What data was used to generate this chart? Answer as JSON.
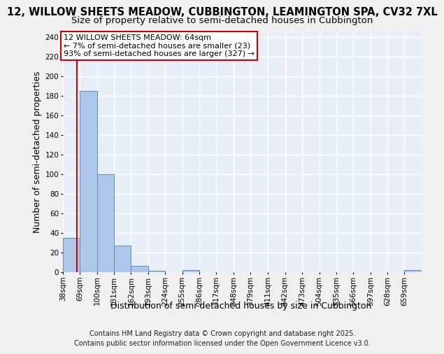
{
  "title_line1": "12, WILLOW SHEETS MEADOW, CUBBINGTON, LEAMINGTON SPA, CV32 7XL",
  "title_line2": "Size of property relative to semi-detached houses in Cubbington",
  "xlabel": "Distribution of semi-detached houses by size in Cubbington",
  "ylabel": "Number of semi-detached properties",
  "footer_line1": "Contains HM Land Registry data © Crown copyright and database right 2025.",
  "footer_line2": "Contains public sector information licensed under the Open Government Licence v3.0.",
  "annotation_line1": "12 WILLOW SHEETS MEADOW: 64sqm",
  "annotation_line2": "← 7% of semi-detached houses are smaller (23)",
  "annotation_line3": "93% of semi-detached houses are larger (327) →",
  "property_size_sqm": 64,
  "bar_left_edges": [
    38,
    69,
    100,
    131,
    162,
    193,
    224,
    255,
    286,
    317,
    348,
    379,
    411,
    442,
    473,
    504,
    535,
    566,
    597,
    628,
    659
  ],
  "bar_heights": [
    35,
    185,
    100,
    27,
    6,
    1,
    0,
    2,
    0,
    0,
    0,
    0,
    0,
    0,
    0,
    0,
    0,
    0,
    0,
    0,
    2
  ],
  "bin_width": 31,
  "bar_color": "#aec6e8",
  "bar_edge_color": "#5a8fc0",
  "vline_color": "#cc0000",
  "annotation_box_color": "#cc0000",
  "background_color": "#e8eef8",
  "grid_color": "#ffffff",
  "fig_facecolor": "#f0f0f0",
  "ylim": [
    0,
    245
  ],
  "yticks": [
    0,
    20,
    40,
    60,
    80,
    100,
    120,
    140,
    160,
    180,
    200,
    220,
    240
  ],
  "x_labels": [
    "38sqm",
    "69sqm",
    "100sqm",
    "131sqm",
    "162sqm",
    "193sqm",
    "224sqm",
    "255sqm",
    "286sqm",
    "317sqm",
    "348sqm",
    "379sqm",
    "411sqm",
    "442sqm",
    "473sqm",
    "504sqm",
    "535sqm",
    "566sqm",
    "597sqm",
    "628sqm",
    "659sqm"
  ],
  "title_fontsize": 10.5,
  "subtitle_fontsize": 9.5,
  "axis_label_fontsize": 9,
  "tick_fontsize": 7.5,
  "annotation_fontsize": 8,
  "footer_fontsize": 7
}
